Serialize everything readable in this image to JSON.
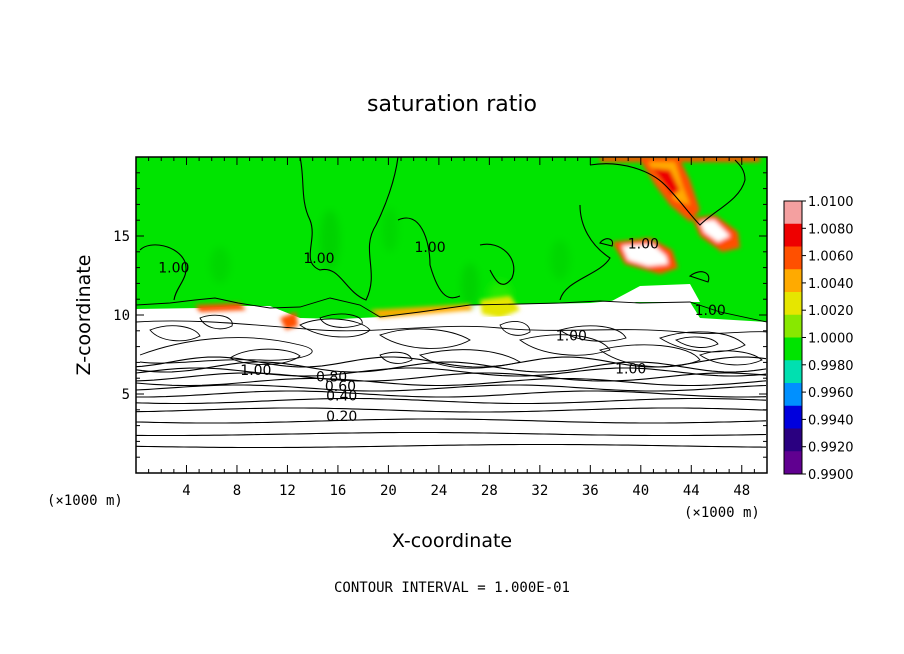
{
  "chart_data": {
    "type": "heatmap",
    "title": "saturation ratio",
    "xlabel": "X-coordinate",
    "ylabel": "Z-coordinate",
    "x_unit": "(×1000 m)",
    "y_unit": "(×1000 m)",
    "xlim": [
      0,
      50
    ],
    "ylim": [
      0,
      20
    ],
    "x_ticks": [
      4,
      8,
      12,
      16,
      20,
      24,
      28,
      32,
      36,
      40,
      44,
      48
    ],
    "y_ticks": [
      5,
      10,
      15
    ],
    "colorbar": {
      "levels": [
        "1.0100",
        "1.0080",
        "1.0060",
        "1.0040",
        "1.0020",
        "1.0000",
        "0.9980",
        "0.9960",
        "0.9940",
        "0.9920",
        "0.9900"
      ],
      "colors": [
        "#f4a0a0",
        "#ee0000",
        "#ff5000",
        "#ffaa00",
        "#e6e600",
        "#88e800",
        "#00e400",
        "#00e0b0",
        "#0090ff",
        "#0000dd",
        "#2a0080",
        "#600090"
      ]
    },
    "contour_labels": [
      {
        "text": "1.00",
        "x": 3,
        "z": 12.7
      },
      {
        "text": "1.00",
        "x": 14.5,
        "z": 13.3
      },
      {
        "text": "1.00",
        "x": 23.3,
        "z": 14.0
      },
      {
        "text": "1.00",
        "x": 40.2,
        "z": 14.2
      },
      {
        "text": "1.00",
        "x": 45.5,
        "z": 10.0
      },
      {
        "text": "1.00",
        "x": 34.5,
        "z": 8.4
      },
      {
        "text": "1.00",
        "x": 39.2,
        "z": 6.3
      },
      {
        "text": "1.00",
        "x": 9.5,
        "z": 6.2
      },
      {
        "text": "0.80",
        "x": 15.5,
        "z": 5.8
      },
      {
        "text": "0.60",
        "x": 16.2,
        "z": 5.2
      },
      {
        "text": "0.40",
        "x": 16.3,
        "z": 4.6
      },
      {
        "text": "0.20",
        "x": 16.3,
        "z": 3.3
      }
    ],
    "contour_interval": "CONTOUR INTERVAL = 1.000E-01"
  }
}
